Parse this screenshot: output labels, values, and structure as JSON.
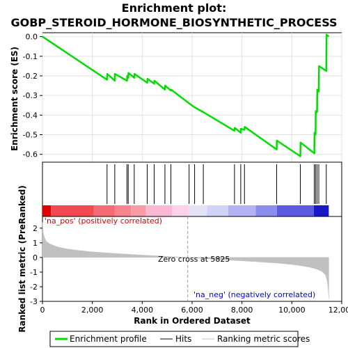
{
  "chart_data": {
    "type": "line",
    "title_line1": "Enrichment plot:",
    "title_line2": "GOBP_STEROID_HORMONE_BIOSYNTHETIC_PROCESS",
    "panel_es": {
      "ylabel": "Enrichment score (ES)",
      "ylim": [
        -0.64,
        0.02
      ],
      "yticks": [
        0.0,
        -0.1,
        -0.2,
        -0.3,
        -0.4,
        -0.5,
        -0.6
      ],
      "ytick_labels": [
        "0.0",
        "-0.1",
        "-0.2",
        "-0.3",
        "-0.4",
        "-0.5",
        "-0.6"
      ],
      "series": [
        {
          "name": "Enrichment profile",
          "color": "#00dd00",
          "x": [
            0,
            2590,
            2600,
            2900,
            2905,
            3390,
            3400,
            3440,
            3450,
            3680,
            3690,
            4200,
            4210,
            4480,
            4490,
            4910,
            4920,
            5150,
            5160,
            5880,
            6100,
            6450,
            7700,
            7710,
            7950,
            7960,
            8100,
            8110,
            9390,
            9400,
            10340,
            10350,
            10900,
            10910,
            10950,
            10960,
            11010,
            11020,
            11080,
            11090,
            11380,
            11390,
            11480
          ],
          "y": [
            0.0,
            -0.22,
            -0.19,
            -0.225,
            -0.19,
            -0.225,
            -0.2,
            -0.21,
            -0.185,
            -0.21,
            -0.19,
            -0.235,
            -0.215,
            -0.24,
            -0.225,
            -0.27,
            -0.25,
            -0.275,
            -0.27,
            -0.34,
            -0.36,
            -0.385,
            -0.48,
            -0.465,
            -0.49,
            -0.47,
            -0.475,
            -0.46,
            -0.575,
            -0.53,
            -0.61,
            -0.54,
            -0.595,
            -0.49,
            -0.5,
            -0.38,
            -0.385,
            -0.27,
            -0.28,
            -0.15,
            -0.175,
            0.01,
            0.0
          ]
        }
      ]
    },
    "hits": {
      "name": "Hits",
      "positions": [
        2590,
        2900,
        3390,
        3440,
        3680,
        4200,
        4480,
        4910,
        5150,
        5880,
        6100,
        6450,
        7700,
        7950,
        8100,
        9390,
        10340,
        10900,
        10950,
        11010,
        11080,
        11380
      ]
    },
    "rank_colorbar": {
      "segments": [
        {
          "from": 0,
          "to": 340,
          "color": "#e00000"
        },
        {
          "from": 340,
          "to": 2050,
          "color": "#f24a50"
        },
        {
          "from": 2050,
          "to": 2900,
          "color": "#f56a74"
        },
        {
          "from": 2900,
          "to": 3550,
          "color": "#f7848c"
        },
        {
          "from": 3550,
          "to": 4150,
          "color": "#f99aa6"
        },
        {
          "from": 4150,
          "to": 5200,
          "color": "#fbb8d2"
        },
        {
          "from": 5200,
          "to": 5880,
          "color": "#fcd2e8"
        },
        {
          "from": 5880,
          "to": 6600,
          "color": "#e4e4f8"
        },
        {
          "from": 6600,
          "to": 7450,
          "color": "#d2d2f6"
        },
        {
          "from": 7450,
          "to": 8550,
          "color": "#b4b4f2"
        },
        {
          "from": 8550,
          "to": 9400,
          "color": "#8c8cee"
        },
        {
          "from": 9400,
          "to": 10880,
          "color": "#5a5ae0"
        },
        {
          "from": 10880,
          "to": 11480,
          "color": "#1818c8"
        }
      ]
    },
    "panel_rank": {
      "ylabel": "Ranked list metric (PreRanked)",
      "ylim": [
        -3,
        2.8
      ],
      "yticks": [
        2,
        1,
        0,
        -1,
        -2,
        -3
      ],
      "ytick_labels": [
        "2",
        "1",
        "0",
        "-1",
        "-2",
        "-3"
      ],
      "series": [
        {
          "name": "Ranking metric scores",
          "color": "#c0c0c0",
          "x": [
            0,
            30,
            80,
            150,
            300,
            600,
            1000,
            1500,
            2000,
            3000,
            4000,
            5000,
            5825,
            6500,
            7500,
            8500,
            9500,
            10200,
            10700,
            11000,
            11200,
            11350,
            11420,
            11460,
            11480
          ],
          "y": [
            2.4,
            1.7,
            1.35,
            1.1,
            0.92,
            0.72,
            0.58,
            0.47,
            0.38,
            0.26,
            0.16,
            0.07,
            0.0,
            -0.08,
            -0.18,
            -0.28,
            -0.4,
            -0.52,
            -0.66,
            -0.8,
            -0.95,
            -1.2,
            -1.6,
            -2.2,
            -2.8
          ]
        }
      ],
      "zero_cross_label": "Zero cross at 5825",
      "zero_cross_x": 5825,
      "pos_label": "'na_pos' (positively correlated)",
      "neg_label": "'na_neg' (negatively correlated)"
    },
    "xaxis": {
      "label": "Rank in Ordered Dataset",
      "xlim": [
        0,
        11480
      ],
      "ticks": [
        0,
        2000,
        4000,
        6000,
        8000,
        10000,
        12000
      ],
      "tick_labels": [
        "0",
        "2,000",
        "4,000",
        "6,000",
        "8,000",
        "10,000",
        "12,000"
      ]
    },
    "legend": {
      "position": "bottom",
      "items": [
        {
          "label": "Enrichment profile",
          "color": "#00dd00"
        },
        {
          "label": "Hits",
          "color": "#000000"
        },
        {
          "label": "Ranking metric scores",
          "color": "#c0c0c0"
        }
      ]
    },
    "colors": {
      "pos_label": "#dd0000",
      "neg_label": "#0000dd"
    }
  }
}
